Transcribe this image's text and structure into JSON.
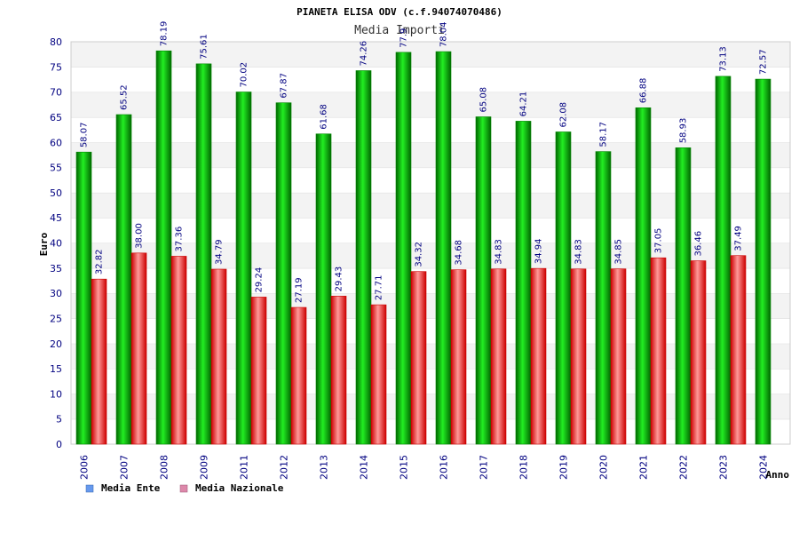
{
  "chart_data": {
    "type": "bar",
    "title": "PIANETA ELISA ODV (c.f.94074070486)",
    "subtitle": "Media Importi",
    "xlabel": "Anno",
    "ylabel": "Euro",
    "ylim": [
      0,
      80
    ],
    "ytick_step": 5,
    "grid": true,
    "legend_position": "bottom-left",
    "categories": [
      "2006",
      "2007",
      "2008",
      "2009",
      "2011",
      "2012",
      "2013",
      "2014",
      "2015",
      "2016",
      "2017",
      "2018",
      "2019",
      "2020",
      "2021",
      "2022",
      "2023",
      "2024"
    ],
    "series": [
      {
        "name": "Media Ente",
        "color": "#00cc00",
        "legend_color": "#6699ee",
        "values": [
          58.07,
          65.52,
          78.19,
          75.61,
          70.02,
          67.87,
          61.68,
          74.26,
          77.9,
          78.04,
          65.08,
          64.21,
          62.08,
          58.17,
          66.88,
          58.93,
          73.13,
          72.57
        ],
        "labels": [
          "58.07",
          "65.52",
          "78.19",
          "75.61",
          "70.02",
          "67.87",
          "61.68",
          "74.26",
          "77.9",
          "78.04",
          "65.08",
          "64.21",
          "62.08",
          "58.17",
          "66.88",
          "58.93",
          "73.13",
          "72.57"
        ]
      },
      {
        "name": "Media Nazionale",
        "color": "#ee1111",
        "legend_color": "#dd88aa",
        "values": [
          32.82,
          38.0,
          37.36,
          34.79,
          29.24,
          27.19,
          29.43,
          27.71,
          34.32,
          34.68,
          34.83,
          34.94,
          34.83,
          34.85,
          37.05,
          36.46,
          37.49,
          null
        ],
        "labels": [
          "32.82",
          "38.00",
          "37.36",
          "34.79",
          "29.24",
          "27.19",
          "29.43",
          "27.71",
          "34.32",
          "34.68",
          "34.83",
          "34.94",
          "34.83",
          "34.85",
          "37.05",
          "36.46",
          "37.49",
          ""
        ]
      }
    ]
  }
}
